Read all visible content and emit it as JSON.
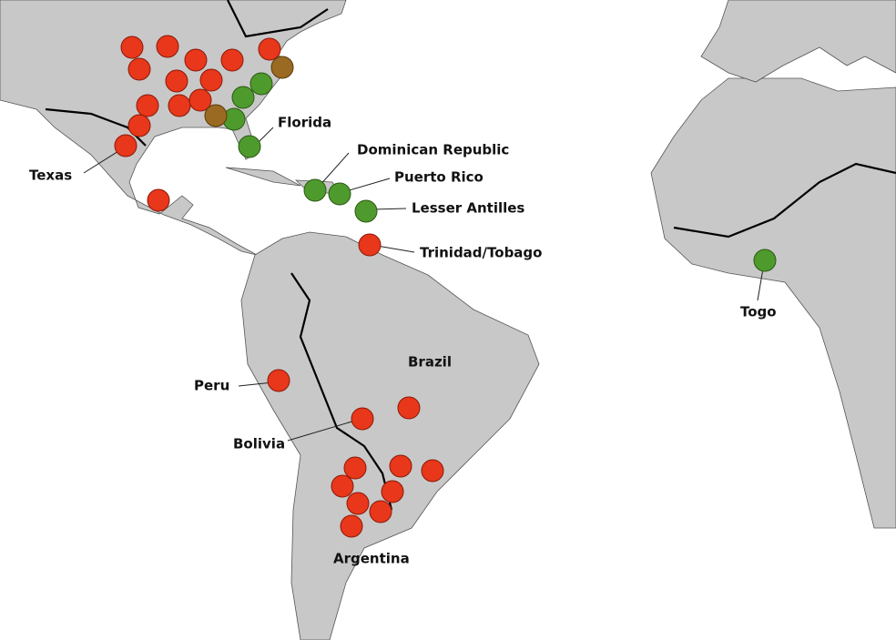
{
  "map": {
    "labels": {
      "texas": "Texas",
      "florida": "Florida",
      "dominican_republic": "Dominican Republic",
      "puerto_rico": "Puerto Rico",
      "lesser_antilles": "Lesser Antilles",
      "trinidad_tobago": "Trinidad/Tobago",
      "togo": "Togo",
      "brazil": "Brazil",
      "peru": "Peru",
      "bolivia": "Bolivia",
      "argentina": "Argentina"
    }
  }
}
